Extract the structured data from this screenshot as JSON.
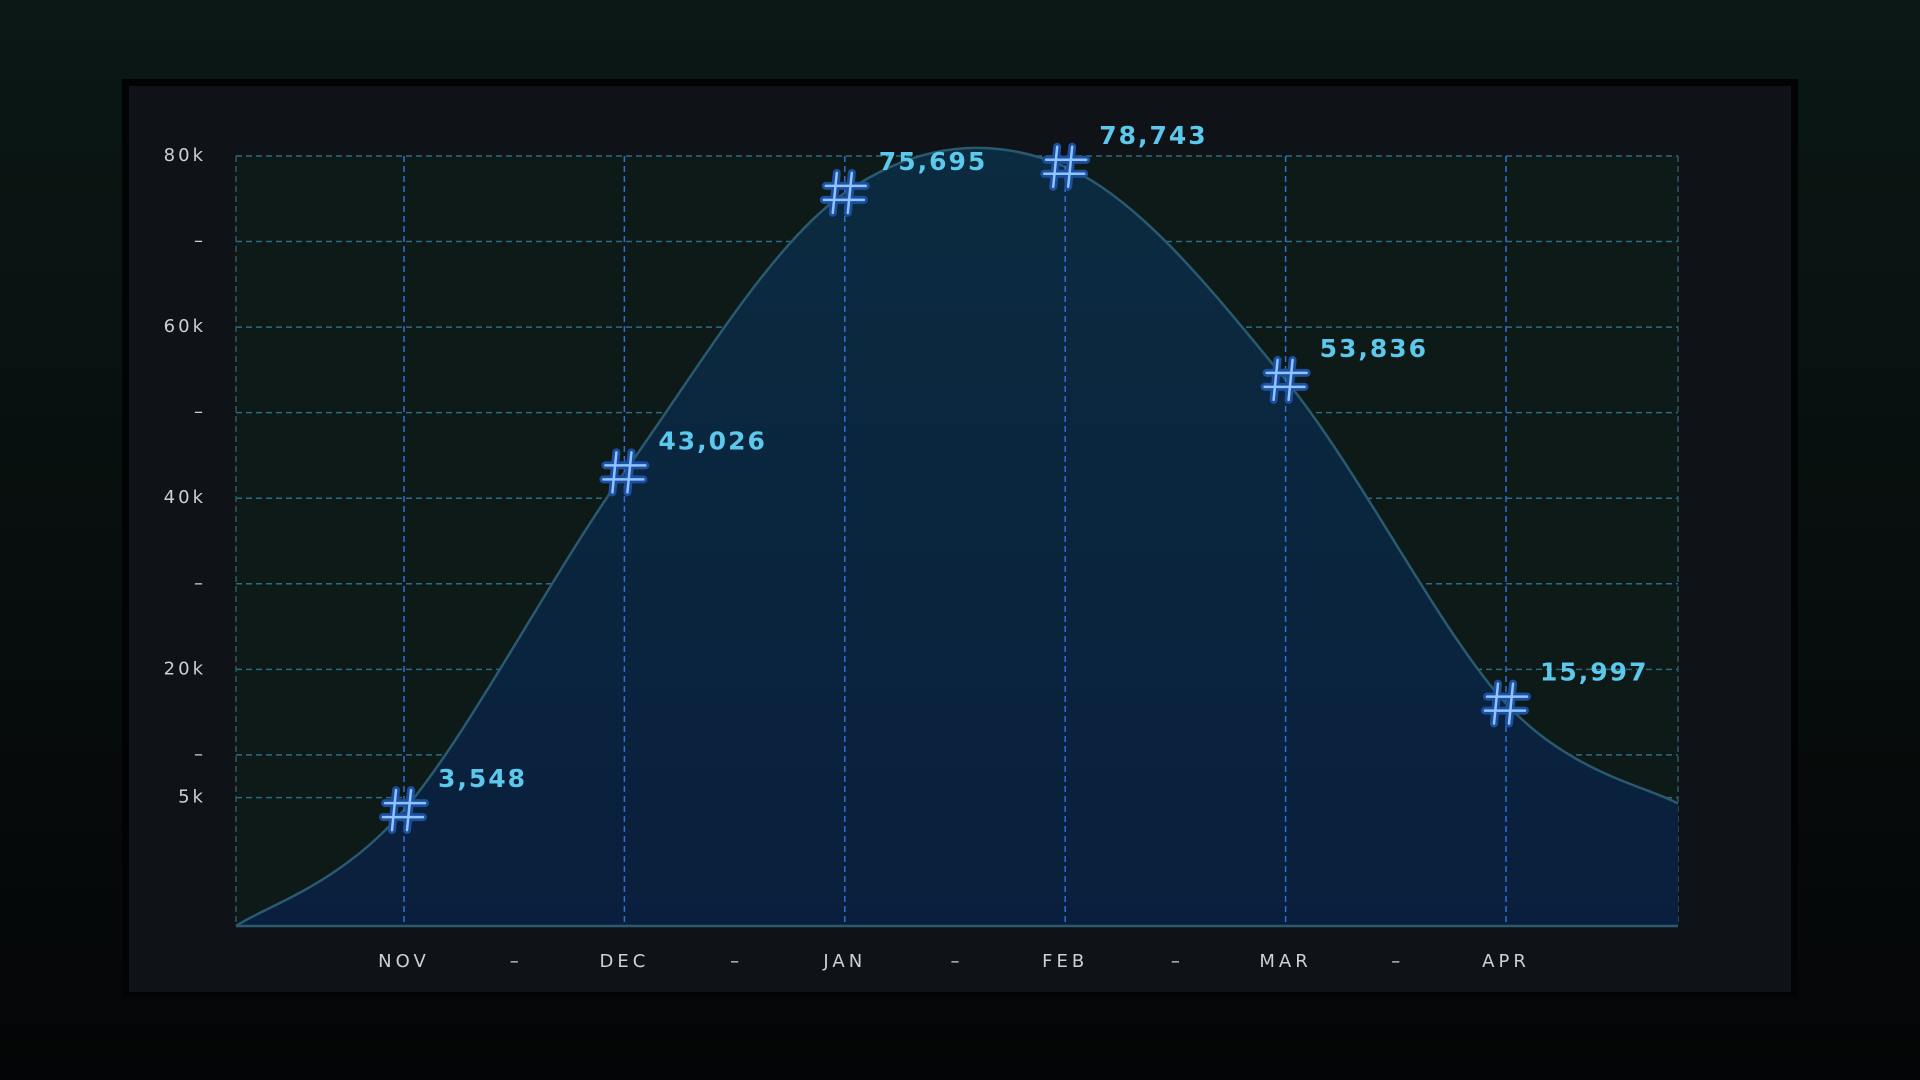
{
  "chart_data": {
    "type": "area",
    "categories": [
      "NOV",
      "DEC",
      "JAN",
      "FEB",
      "MAR",
      "APR"
    ],
    "x_separators": [
      "–",
      "–",
      "–",
      "–",
      "–"
    ],
    "values": [
      3548,
      43026,
      75695,
      78743,
      53836,
      15997
    ],
    "value_labels": [
      "3,548",
      "43,026",
      "75,695",
      "78,743",
      "53,836",
      "15,997"
    ],
    "color": "#5cc8ec",
    "ylim": [
      -10000,
      80000
    ],
    "yticks": [
      {
        "value": 80000,
        "label": "80k"
      },
      {
        "value": 70000,
        "label": "–"
      },
      {
        "value": 60000,
        "label": "60k"
      },
      {
        "value": 50000,
        "label": "–"
      },
      {
        "value": 40000,
        "label": "40k"
      },
      {
        "value": 30000,
        "label": "–"
      },
      {
        "value": 20000,
        "label": "20k"
      },
      {
        "value": 10000,
        "label": "–"
      },
      {
        "value": 5000,
        "label": "5k"
      }
    ],
    "grid": true
  }
}
